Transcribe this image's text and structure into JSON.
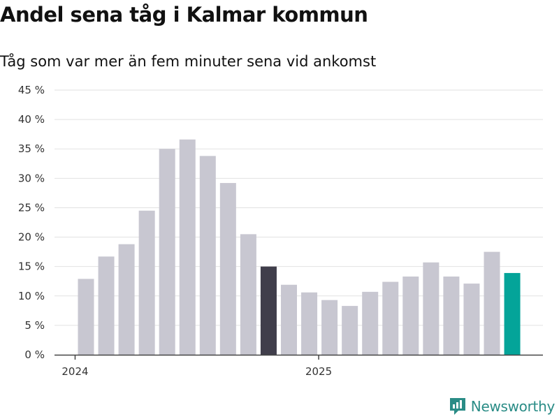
{
  "header": {
    "title": "Andel sena tåg i Kalmar kommun",
    "subtitle": "Tåg som var mer än fem minuter sena vid ankomst"
  },
  "brand": {
    "name": "Newsworthy"
  },
  "colors": {
    "bar_default": "#c8c7d1",
    "bar_highlight_dark": "#403e4b",
    "bar_highlight_teal": "#04a499",
    "grid": "#e2e2e2",
    "axis": "#444444",
    "brand": "#2a8c86"
  },
  "chart_data": {
    "type": "bar",
    "title": "Andel sena tåg i Kalmar kommun",
    "subtitle": "Tåg som var mer än fem minuter sena vid ankomst",
    "xlabel": "",
    "ylabel": "",
    "ylim": [
      0,
      45
    ],
    "yticks": [
      0,
      5,
      10,
      15,
      20,
      25,
      30,
      35,
      40,
      45
    ],
    "ytick_labels": [
      "0 %",
      "5 %",
      "10 %",
      "15 %",
      "20 %",
      "25 %",
      "30 %",
      "35 %",
      "40 %",
      "45 %"
    ],
    "grid": true,
    "categories": [
      "2024-01",
      "2024-02",
      "2024-03",
      "2024-04",
      "2024-05",
      "2024-06",
      "2024-07",
      "2024-08",
      "2024-09",
      "2024-10",
      "2024-11",
      "2024-12",
      "2025-01",
      "2025-02",
      "2025-03",
      "2025-04",
      "2025-05",
      "2025-06",
      "2025-07",
      "2025-08",
      "2025-09",
      "2025-10"
    ],
    "values": [
      12.9,
      16.7,
      18.8,
      24.5,
      35.0,
      36.6,
      33.8,
      29.2,
      20.5,
      15.0,
      11.9,
      10.6,
      9.3,
      8.3,
      10.7,
      12.4,
      13.3,
      15.7,
      13.3,
      12.1,
      17.5,
      13.9
    ],
    "highlight": {
      "2024-10": "dark",
      "2025-10": "teal"
    },
    "x_tick_labels": [
      {
        "label": "2024",
        "category": "2024-01"
      },
      {
        "label": "2025",
        "category": "2025-01"
      }
    ]
  }
}
